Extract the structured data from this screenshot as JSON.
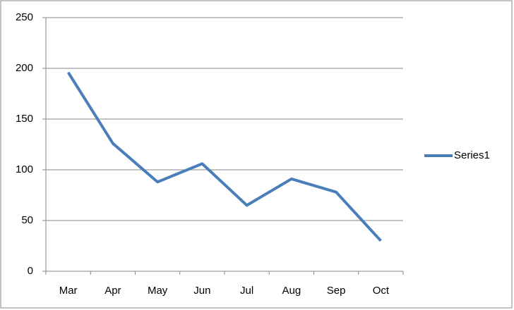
{
  "chart_data": {
    "type": "line",
    "categories": [
      "Mar",
      "Apr",
      "May",
      "Jun",
      "Jul",
      "Aug",
      "Sep",
      "Oct"
    ],
    "series": [
      {
        "name": "Series1",
        "color": "#4a7ebb",
        "values": [
          196,
          126,
          88,
          106,
          65,
          91,
          78,
          30
        ]
      }
    ],
    "ylim": [
      0,
      250
    ],
    "yticks": [
      0,
      50,
      100,
      150,
      200,
      250
    ],
    "grid": true,
    "legend": "right"
  }
}
